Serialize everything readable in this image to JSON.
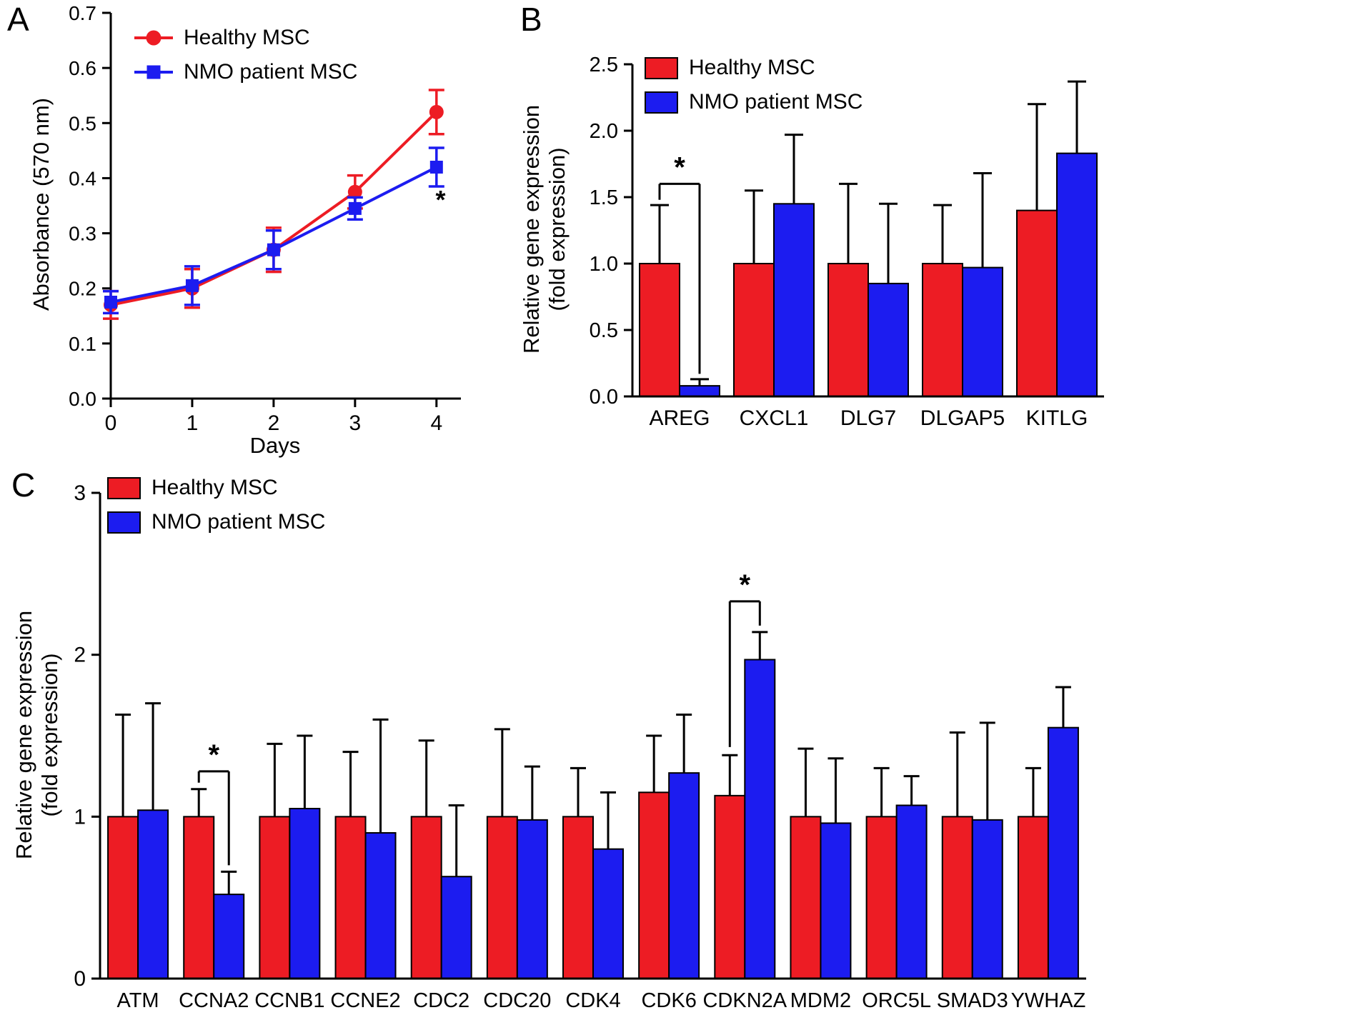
{
  "figure": {
    "background": "#ffffff",
    "colors": {
      "healthy": "#ed1c24",
      "nmo": "#1c1cf0",
      "axis": "#000000",
      "error_bar": "#000000"
    }
  },
  "legend": {
    "healthy": "Healthy MSC",
    "nmo": "NMO patient MSC"
  },
  "panels": {
    "a": {
      "letter": "A"
    },
    "b": {
      "letter": "B"
    },
    "c": {
      "letter": "C"
    }
  },
  "chart_data": [
    {
      "id": "panel-a",
      "type": "line",
      "title": "",
      "xlabel": "Days",
      "ylabel": "Absorbance (570 nm)",
      "x": [
        0,
        1,
        2,
        3,
        4
      ],
      "xlim": [
        0,
        4.3
      ],
      "ylim": [
        0,
        0.7
      ],
      "xticks": [
        0,
        1,
        2,
        3,
        4
      ],
      "xtick_labels": [
        "0",
        "1",
        "2",
        "3",
        "4"
      ],
      "yticks": [
        0,
        0.1,
        0.2,
        0.3,
        0.4,
        0.5,
        0.6,
        0.7
      ],
      "ytick_labels": [
        "0.0",
        "0.1",
        "0.2",
        "0.3",
        "0.4",
        "0.5",
        "0.6",
        "0.7"
      ],
      "grid": false,
      "legend_position": "top-left",
      "series": [
        {
          "name": "Healthy MSC",
          "color": "#ed1c24",
          "marker": "circle",
          "values": [
            0.17,
            0.2,
            0.27,
            0.375,
            0.52
          ],
          "errors": [
            0.025,
            0.035,
            0.04,
            0.03,
            0.04
          ]
        },
        {
          "name": "NMO patient MSC",
          "color": "#1c1cf0",
          "marker": "square",
          "values": [
            0.175,
            0.205,
            0.27,
            0.345,
            0.42
          ],
          "errors": [
            0.02,
            0.035,
            0.035,
            0.02,
            0.035
          ]
        }
      ],
      "annotations": [
        {
          "text": "*",
          "x": 4.05,
          "y": 0.345
        }
      ]
    },
    {
      "id": "panel-b",
      "type": "bar",
      "title": "",
      "xlabel": "",
      "ylabel": "Relative gene expression\n(fold expression)",
      "categories": [
        "AREG",
        "CXCL1",
        "DLG7",
        "DLGAP5",
        "KITLG"
      ],
      "ylim": [
        0,
        2.5
      ],
      "yticks": [
        0,
        0.5,
        1,
        1.5,
        2,
        2.5
      ],
      "ytick_labels": [
        "0.0",
        "0.5",
        "1.0",
        "1.5",
        "2.0",
        "2.5"
      ],
      "grid": false,
      "legend_position": "top-left",
      "series": [
        {
          "name": "Healthy MSC",
          "color": "#ed1c24",
          "values": [
            1.0,
            1.0,
            1.0,
            1.0,
            1.4
          ],
          "errors": [
            0.44,
            0.55,
            0.6,
            0.44,
            0.8
          ]
        },
        {
          "name": "NMO patient MSC",
          "color": "#1c1cf0",
          "values": [
            0.08,
            1.45,
            0.85,
            0.97,
            1.83
          ],
          "errors": [
            0.05,
            0.52,
            0.6,
            0.71,
            0.54
          ]
        }
      ],
      "significance": [
        {
          "category": "AREG",
          "top": 1.6,
          "drop_left": 1.48,
          "drop_right": 0.17,
          "label": "*"
        }
      ]
    },
    {
      "id": "panel-c",
      "type": "bar",
      "title": "",
      "xlabel": "",
      "ylabel": "Relative gene expression\n(fold expression)",
      "categories": [
        "ATM",
        "CCNA2",
        "CCNB1",
        "CCNE2",
        "CDC2",
        "CDC20",
        "CDK4",
        "CDK6",
        "CDKN2A",
        "MDM2",
        "ORC5L",
        "SMAD3",
        "YWHAZ"
      ],
      "ylim": [
        0,
        3
      ],
      "yticks": [
        0,
        1,
        2,
        3
      ],
      "ytick_labels": [
        "0",
        "1",
        "2",
        "3"
      ],
      "grid": false,
      "legend_position": "top-left",
      "series": [
        {
          "name": "Healthy MSC",
          "color": "#ed1c24",
          "values": [
            1.0,
            1.0,
            1.0,
            1.0,
            1.0,
            1.0,
            1.0,
            1.15,
            1.13,
            1.0,
            1.0,
            1.0,
            1.0
          ],
          "errors": [
            0.63,
            0.17,
            0.45,
            0.4,
            0.47,
            0.54,
            0.3,
            0.35,
            0.25,
            0.42,
            0.3,
            0.52,
            0.3
          ]
        },
        {
          "name": "NMO patient MSC",
          "color": "#1c1cf0",
          "values": [
            1.04,
            0.52,
            1.05,
            0.9,
            0.63,
            0.98,
            0.8,
            1.27,
            1.97,
            0.96,
            1.07,
            0.98,
            1.55
          ],
          "errors": [
            0.66,
            0.14,
            0.45,
            0.7,
            0.44,
            0.33,
            0.35,
            0.36,
            0.17,
            0.4,
            0.18,
            0.6,
            0.25
          ]
        }
      ],
      "significance": [
        {
          "category": "CCNA2",
          "top": 1.28,
          "drop_left": 1.21,
          "drop_right": 0.7,
          "label": "*"
        },
        {
          "category": "CDKN2A",
          "top": 2.33,
          "drop_left": 1.43,
          "drop_right": 2.18,
          "label": "*"
        }
      ]
    }
  ]
}
